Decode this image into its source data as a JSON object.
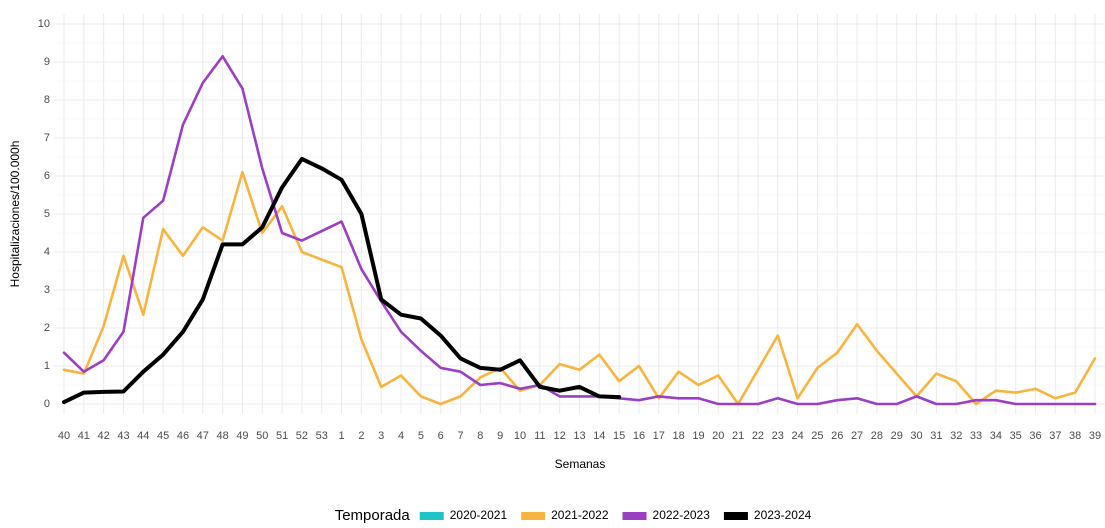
{
  "chart_data": {
    "type": "line",
    "x_label": "Semanas",
    "y_label": "Hospitalizaciones/100.000h",
    "legend_title": "Temporada",
    "legend_position": "bottom",
    "grid": true,
    "categories": [
      "40",
      "41",
      "42",
      "43",
      "44",
      "45",
      "46",
      "47",
      "48",
      "49",
      "50",
      "51",
      "52",
      "53",
      "1",
      "2",
      "3",
      "4",
      "5",
      "6",
      "7",
      "8",
      "9",
      "10",
      "11",
      "12",
      "13",
      "14",
      "15",
      "16",
      "17",
      "18",
      "19",
      "20",
      "21",
      "22",
      "23",
      "24",
      "25",
      "26",
      "27",
      "28",
      "29",
      "30",
      "31",
      "32",
      "33",
      "34",
      "35",
      "36",
      "37",
      "38",
      "39"
    ],
    "ylim": [
      0,
      10
    ],
    "yticks": [
      0,
      1,
      2,
      3,
      4,
      5,
      6,
      7,
      8,
      9,
      10
    ],
    "series": [
      {
        "name": "2020-2021",
        "color": "#1fc3c8",
        "values": [
          null,
          null,
          null,
          null,
          null,
          null,
          null,
          null,
          null,
          null,
          null,
          null,
          null,
          null,
          null,
          null,
          null,
          null,
          null,
          null,
          null,
          null,
          null,
          null,
          null,
          null,
          null,
          null,
          null,
          null,
          null,
          null,
          null,
          null,
          null,
          null,
          null,
          null,
          null,
          null,
          null,
          null,
          null,
          null,
          null,
          null,
          null,
          null,
          null,
          null,
          null,
          null,
          null
        ]
      },
      {
        "name": "2021-2022",
        "color": "#f7b440",
        "values": [
          0.9,
          0.8,
          2.05,
          3.9,
          2.35,
          4.6,
          3.9,
          4.65,
          4.3,
          6.1,
          4.5,
          5.2,
          4.0,
          3.8,
          3.6,
          1.7,
          0.45,
          0.75,
          0.2,
          0.0,
          0.2,
          0.7,
          0.95,
          0.35,
          0.5,
          1.05,
          0.9,
          1.3,
          0.6,
          1.0,
          0.15,
          0.85,
          0.5,
          0.75,
          0.0,
          0.9,
          1.8,
          0.15,
          0.95,
          1.35,
          2.1,
          1.4,
          0.8,
          0.2,
          0.8,
          0.6,
          0.0,
          0.35,
          0.3,
          0.4,
          0.15,
          0.3,
          1.2
        ]
      },
      {
        "name": "2022-2023",
        "color": "#9b3fc1",
        "values": [
          1.35,
          0.85,
          1.15,
          1.9,
          4.9,
          5.35,
          7.35,
          8.45,
          9.15,
          8.3,
          6.2,
          4.5,
          4.3,
          4.55,
          4.8,
          3.55,
          2.7,
          1.9,
          1.4,
          0.95,
          0.85,
          0.5,
          0.55,
          0.4,
          0.5,
          0.2,
          0.2,
          0.2,
          0.15,
          0.1,
          0.2,
          0.15,
          0.15,
          0.0,
          0.0,
          0.0,
          0.15,
          0.0,
          0.0,
          0.1,
          0.15,
          0.0,
          0.0,
          0.2,
          0.0,
          0.0,
          0.1,
          0.1,
          0.0,
          0.0,
          0.0,
          0.0,
          0.0
        ]
      },
      {
        "name": "2023-2024",
        "color": "#000000",
        "values": [
          0.05,
          0.3,
          0.32,
          0.33,
          0.85,
          1.3,
          1.9,
          2.75,
          4.2,
          4.2,
          4.65,
          5.7,
          6.45,
          6.2,
          5.9,
          5.0,
          2.75,
          2.35,
          2.25,
          1.8,
          1.2,
          0.95,
          0.9,
          1.15,
          0.45,
          0.35,
          0.45,
          0.2,
          0.18,
          null,
          null,
          null,
          null,
          null,
          null,
          null,
          null,
          null,
          null,
          null,
          null,
          null,
          null,
          null,
          null,
          null,
          null,
          null,
          null,
          null,
          null,
          null,
          null
        ]
      }
    ]
  }
}
